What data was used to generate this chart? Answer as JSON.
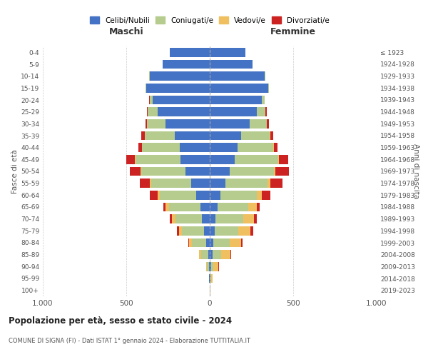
{
  "age_groups": [
    "0-4",
    "5-9",
    "10-14",
    "15-19",
    "20-24",
    "25-29",
    "30-34",
    "35-39",
    "40-44",
    "45-49",
    "50-54",
    "55-59",
    "60-64",
    "65-69",
    "70-74",
    "75-79",
    "80-84",
    "85-89",
    "90-94",
    "95-99",
    "100+"
  ],
  "birth_years": [
    "2019-2023",
    "2014-2018",
    "2009-2013",
    "2004-2008",
    "1999-2003",
    "1994-1998",
    "1989-1993",
    "1984-1988",
    "1979-1983",
    "1974-1978",
    "1969-1973",
    "1964-1968",
    "1959-1963",
    "1954-1958",
    "1949-1953",
    "1944-1948",
    "1939-1943",
    "1934-1938",
    "1929-1933",
    "1924-1928",
    "≤ 1923"
  ],
  "male": {
    "celibe": [
      240,
      280,
      360,
      380,
      340,
      310,
      265,
      210,
      180,
      175,
      145,
      110,
      80,
      55,
      45,
      35,
      20,
      10,
      5,
      3,
      2
    ],
    "coniugato": [
      0,
      0,
      2,
      5,
      20,
      60,
      110,
      180,
      225,
      270,
      265,
      240,
      220,
      190,
      160,
      130,
      85,
      40,
      10,
      2,
      0
    ],
    "vedovo": [
      0,
      0,
      0,
      0,
      0,
      0,
      0,
      1,
      2,
      3,
      5,
      8,
      12,
      18,
      22,
      20,
      18,
      12,
      5,
      1,
      0
    ],
    "divorziato": [
      0,
      0,
      0,
      0,
      2,
      5,
      10,
      18,
      20,
      50,
      65,
      60,
      45,
      15,
      12,
      10,
      5,
      2,
      1,
      0,
      0
    ]
  },
  "female": {
    "nubile": [
      215,
      255,
      330,
      350,
      310,
      280,
      240,
      190,
      165,
      150,
      120,
      95,
      65,
      45,
      35,
      30,
      20,
      15,
      8,
      5,
      2
    ],
    "coniugata": [
      0,
      0,
      2,
      5,
      18,
      55,
      100,
      170,
      215,
      260,
      265,
      250,
      215,
      185,
      165,
      140,
      100,
      55,
      15,
      3,
      0
    ],
    "vedova": [
      0,
      0,
      0,
      0,
      0,
      0,
      1,
      2,
      3,
      5,
      10,
      18,
      30,
      50,
      65,
      75,
      70,
      55,
      30,
      8,
      1
    ],
    "divorziata": [
      0,
      0,
      0,
      0,
      2,
      5,
      12,
      20,
      25,
      55,
      80,
      75,
      55,
      18,
      18,
      15,
      8,
      3,
      1,
      0,
      0
    ]
  },
  "colors": {
    "celibe_nubile": "#4472c4",
    "coniugato_a": "#b5cc8e",
    "vedovo_a": "#f0c060",
    "divorziato_a": "#cc2222"
  },
  "title": "Popolazione per età, sesso e stato civile - 2024",
  "subtitle": "COMUNE DI SIGNA (FI) - Dati ISTAT 1° gennaio 2024 - Elaborazione TUTTITALIA.IT",
  "xlabel_left": "Maschi",
  "xlabel_right": "Femmine",
  "ylabel_left": "Fasce di età",
  "ylabel_right": "Anni di nascita",
  "xlim": 1000,
  "legend_labels": [
    "Celibi/Nubili",
    "Coniugati/e",
    "Vedovi/e",
    "Divorziati/e"
  ],
  "background_color": "#ffffff",
  "bar_height": 0.75
}
